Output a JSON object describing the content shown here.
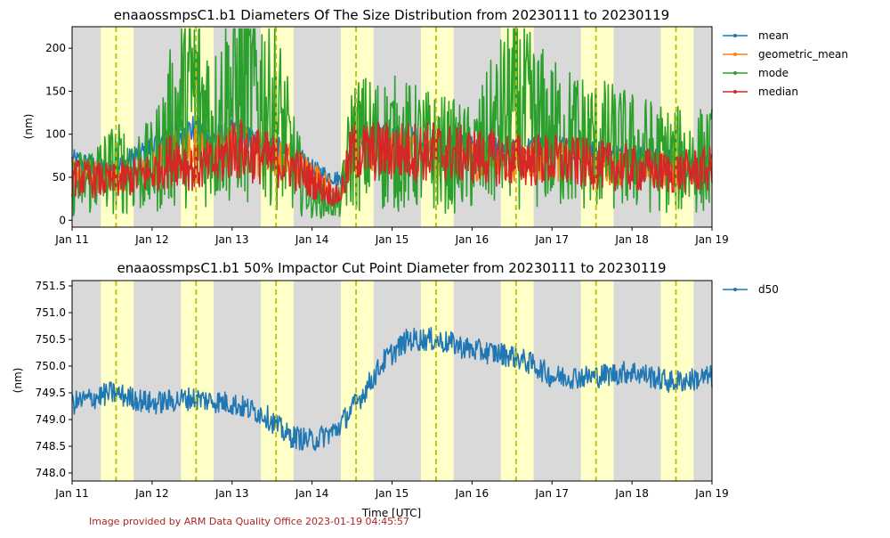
{
  "chart_data": [
    {
      "type": "line",
      "title": "enaaossmpsC1.b1 Diameters Of The Size Distribution from 20230111 to 20230119",
      "xlabel": "",
      "ylabel": "(nm)",
      "x_ticks": [
        "Jan 11",
        "Jan 12",
        "Jan 13",
        "Jan 14",
        "Jan 15",
        "Jan 16",
        "Jan 17",
        "Jan 18",
        "Jan 19"
      ],
      "xlim_days": [
        11,
        19
      ],
      "ylim": [
        -8,
        225
      ],
      "y_ticks": [
        0,
        50,
        100,
        150,
        200
      ],
      "legend_position": "outside-right",
      "series": [
        {
          "name": "mean",
          "color": "#1f77b4",
          "x": [
            11.0,
            11.5,
            12.0,
            12.3,
            12.5,
            12.8,
            13.0,
            13.5,
            13.8,
            14.0,
            14.25,
            14.35,
            14.5,
            15.0,
            15.5,
            16.0,
            16.5,
            17.0,
            17.5,
            18.0,
            18.5,
            19.0
          ],
          "y": [
            70,
            60,
            85,
            100,
            105,
            95,
            100,
            85,
            75,
            60,
            50,
            48,
            95,
            95,
            90,
            85,
            80,
            85,
            80,
            75,
            70,
            65
          ]
        },
        {
          "name": "geometric_mean",
          "color": "#ff7f0e",
          "x": [
            11.0,
            11.5,
            12.0,
            12.3,
            12.5,
            12.8,
            13.0,
            13.5,
            13.8,
            14.0,
            14.25,
            14.35,
            14.5,
            15.0,
            15.5,
            16.0,
            16.5,
            17.0,
            17.5,
            18.0,
            18.5,
            19.0
          ],
          "y": [
            55,
            50,
            60,
            80,
            85,
            75,
            85,
            75,
            65,
            55,
            35,
            32,
            80,
            80,
            75,
            70,
            70,
            70,
            65,
            60,
            60,
            60
          ]
        },
        {
          "name": "mode",
          "color": "#2ca02c",
          "x": [
            11.0,
            11.5,
            12.0,
            12.3,
            12.5,
            12.8,
            13.0,
            13.5,
            13.8,
            14.0,
            14.25,
            14.35,
            14.5,
            15.0,
            15.5,
            16.0,
            16.5,
            17.0,
            17.5,
            18.0,
            18.5,
            19.0
          ],
          "y": [
            40,
            60,
            60,
            120,
            150,
            110,
            150,
            140,
            60,
            25,
            20,
            20,
            90,
            90,
            80,
            70,
            130,
            100,
            90,
            80,
            70,
            70
          ]
        },
        {
          "name": "median",
          "color": "#d62728",
          "x": [
            11.0,
            11.5,
            12.0,
            12.3,
            12.5,
            12.8,
            13.0,
            13.5,
            13.8,
            14.0,
            14.25,
            14.35,
            14.5,
            15.0,
            15.5,
            16.0,
            16.5,
            17.0,
            17.5,
            18.0,
            18.5,
            19.0
          ],
          "y": [
            50,
            45,
            55,
            75,
            60,
            65,
            85,
            70,
            60,
            45,
            30,
            28,
            80,
            80,
            80,
            75,
            70,
            70,
            65,
            60,
            55,
            60
          ]
        }
      ]
    },
    {
      "type": "line",
      "title": "enaaossmpsC1.b1 50% Impactor Cut Point Diameter from 20230111 to 20230119",
      "xlabel": "Time [UTC]",
      "ylabel": "(nm)",
      "x_ticks": [
        "Jan 11",
        "Jan 12",
        "Jan 13",
        "Jan 14",
        "Jan 15",
        "Jan 16",
        "Jan 17",
        "Jan 18",
        "Jan 19"
      ],
      "xlim_days": [
        11,
        19
      ],
      "ylim": [
        747.85,
        751.6
      ],
      "y_ticks": [
        748.0,
        748.5,
        749.0,
        749.5,
        750.0,
        750.5,
        751.0,
        751.5
      ],
      "legend_position": "outside-right",
      "series": [
        {
          "name": "d50",
          "color": "#1f77b4",
          "x": [
            11.0,
            11.5,
            12.0,
            12.5,
            13.0,
            13.4,
            13.7,
            14.0,
            14.3,
            14.6,
            14.9,
            15.2,
            15.5,
            15.8,
            16.0,
            16.5,
            16.8,
            17.0,
            17.5,
            18.0,
            18.5,
            19.0
          ],
          "y": [
            749.3,
            749.5,
            749.3,
            749.4,
            749.3,
            749.1,
            748.7,
            748.6,
            748.8,
            749.4,
            750.1,
            750.5,
            750.5,
            750.4,
            750.3,
            750.2,
            750.0,
            749.8,
            749.8,
            749.9,
            749.7,
            749.8
          ]
        }
      ]
    }
  ],
  "shading": {
    "night_color": "#d9d9d9",
    "day_color": "#ffffc8",
    "day_line_color": "#bfbf00",
    "day_intervals_days": [
      [
        11.36,
        11.77
      ],
      [
        12.36,
        12.77
      ],
      [
        13.36,
        13.77
      ],
      [
        14.36,
        14.77
      ],
      [
        15.36,
        15.77
      ],
      [
        16.36,
        16.77
      ],
      [
        17.36,
        17.77
      ],
      [
        18.36,
        18.77
      ]
    ],
    "noon_lines_days": [
      11.55,
      12.55,
      13.55,
      14.55,
      15.55,
      16.55,
      17.55,
      18.55
    ]
  },
  "credit": "Image provided by ARM Data Quality Office 2023-01-19 04:45:57"
}
